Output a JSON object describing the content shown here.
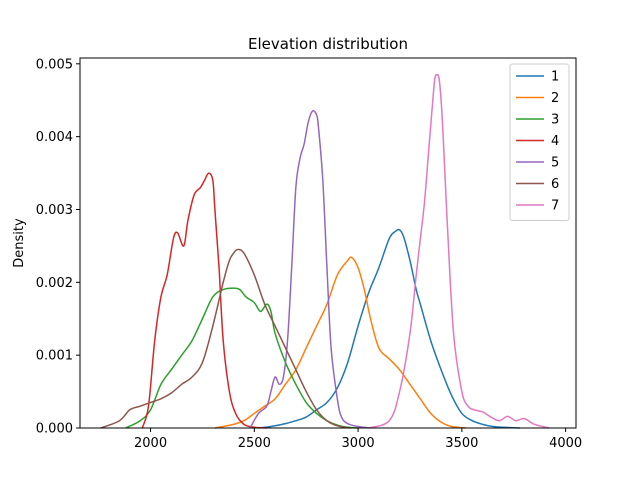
{
  "chart_data": {
    "type": "line",
    "title": "Elevation distribution",
    "xlabel": "",
    "ylabel": "Density",
    "xlim": [
      1660,
      4050
    ],
    "ylim": [
      0,
      0.00508
    ],
    "x_ticks": [
      2000,
      2500,
      3000,
      3500,
      4000
    ],
    "y_ticks": [
      0.0,
      0.001,
      0.002,
      0.003,
      0.004,
      0.005
    ],
    "y_tick_labels": [
      "0.000",
      "0.001",
      "0.002",
      "0.003",
      "0.004",
      "0.005"
    ],
    "legend_position": "top-right",
    "grid": false,
    "series": [
      {
        "name": "1",
        "color": "#1f77b4",
        "x": [
          2520,
          2580,
          2650,
          2700,
          2750,
          2800,
          2850,
          2900,
          2950,
          3000,
          3050,
          3100,
          3150,
          3180,
          3200,
          3220,
          3250,
          3280,
          3300,
          3350,
          3400,
          3450,
          3500,
          3550,
          3600,
          3650,
          3700,
          3780
        ],
        "y": [
          0,
          2e-05,
          6e-05,
          0.0001,
          0.00015,
          0.00025,
          0.00035,
          0.00055,
          0.0009,
          0.0014,
          0.00185,
          0.0022,
          0.0026,
          0.0027,
          0.00272,
          0.00262,
          0.0023,
          0.0019,
          0.0017,
          0.0012,
          0.0008,
          0.00045,
          0.0002,
          0.0001,
          5e-05,
          2e-05,
          1e-05,
          0
        ]
      },
      {
        "name": "2",
        "color": "#ff7f0e",
        "x": [
          2310,
          2400,
          2450,
          2500,
          2550,
          2600,
          2650,
          2700,
          2750,
          2800,
          2850,
          2900,
          2950,
          2970,
          3000,
          3030,
          3060,
          3100,
          3150,
          3200,
          3250,
          3300,
          3350,
          3400,
          3450,
          3520
        ],
        "y": [
          0,
          5e-05,
          0.0001,
          0.0002,
          0.0003,
          0.0004,
          0.0006,
          0.0008,
          0.0011,
          0.0014,
          0.0017,
          0.0021,
          0.0023,
          0.00234,
          0.0022,
          0.0019,
          0.0015,
          0.0011,
          0.00095,
          0.0008,
          0.0006,
          0.0004,
          0.0002,
          8e-05,
          2e-05,
          0
        ]
      },
      {
        "name": "3",
        "color": "#2ca02c",
        "x": [
          1880,
          1950,
          2000,
          2050,
          2100,
          2150,
          2200,
          2250,
          2300,
          2350,
          2400,
          2430,
          2460,
          2500,
          2530,
          2560,
          2580,
          2600,
          2650,
          2700,
          2750,
          2800,
          2850,
          2900,
          2950,
          3000
        ],
        "y": [
          0,
          0.0001,
          0.00025,
          0.0006,
          0.0008,
          0.001,
          0.0012,
          0.0015,
          0.0018,
          0.0019,
          0.00192,
          0.0019,
          0.0018,
          0.00172,
          0.0016,
          0.0017,
          0.0016,
          0.0013,
          0.0009,
          0.0006,
          0.00035,
          0.0002,
          0.0001,
          4e-05,
          1e-05,
          0
        ]
      },
      {
        "name": "4",
        "color": "#d62728",
        "x": [
          1960,
          1990,
          2020,
          2050,
          2080,
          2110,
          2130,
          2160,
          2180,
          2210,
          2240,
          2260,
          2280,
          2300,
          2310,
          2330,
          2350,
          2380,
          2410,
          2450,
          2500,
          2560
        ],
        "y": [
          0,
          0.0003,
          0.0012,
          0.0018,
          0.0021,
          0.0026,
          0.00268,
          0.0025,
          0.00285,
          0.0032,
          0.0033,
          0.0034,
          0.0035,
          0.0034,
          0.003,
          0.0022,
          0.0012,
          0.0005,
          0.0002,
          5e-05,
          1e-05,
          0
        ]
      },
      {
        "name": "5",
        "color": "#9467bd",
        "x": [
          2480,
          2520,
          2560,
          2580,
          2600,
          2620,
          2640,
          2660,
          2680,
          2700,
          2720,
          2740,
          2760,
          2780,
          2800,
          2810,
          2830,
          2850,
          2870,
          2900,
          2920,
          2950,
          3000,
          3060
        ],
        "y": [
          0,
          0.0002,
          0.0003,
          0.0005,
          0.0007,
          0.0006,
          0.0007,
          0.0012,
          0.0022,
          0.0033,
          0.0037,
          0.0039,
          0.0042,
          0.00435,
          0.0043,
          0.0041,
          0.0034,
          0.0022,
          0.0011,
          0.0004,
          0.00015,
          6e-05,
          2e-05,
          0
        ]
      },
      {
        "name": "6",
        "color": "#8c564b",
        "x": [
          1760,
          1850,
          1900,
          1950,
          2000,
          2050,
          2100,
          2150,
          2200,
          2250,
          2300,
          2350,
          2380,
          2400,
          2420,
          2450,
          2500,
          2550,
          2600,
          2650,
          2700,
          2750,
          2800,
          2850,
          2900,
          2960
        ],
        "y": [
          0,
          0.0001,
          0.00025,
          0.0003,
          0.00035,
          0.0004,
          0.00048,
          0.0006,
          0.0007,
          0.0009,
          0.0014,
          0.002,
          0.0023,
          0.0024,
          0.00245,
          0.0024,
          0.0021,
          0.0017,
          0.0014,
          0.0011,
          0.0008,
          0.0005,
          0.00025,
          0.0001,
          3e-05,
          0
        ]
      },
      {
        "name": "7",
        "color": "#e377c2",
        "x": [
          3050,
          3150,
          3200,
          3250,
          3280,
          3300,
          3320,
          3340,
          3360,
          3370,
          3380,
          3390,
          3400,
          3410,
          3430,
          3460,
          3500,
          3530,
          3560,
          3600,
          3640,
          3680,
          3720,
          3760,
          3800,
          3850,
          3920
        ],
        "y": [
          0,
          0.0001,
          0.0005,
          0.0013,
          0.0021,
          0.0026,
          0.0031,
          0.0038,
          0.0045,
          0.0048,
          0.00485,
          0.0048,
          0.0045,
          0.004,
          0.0028,
          0.0013,
          0.0005,
          0.0003,
          0.00025,
          0.00022,
          0.00015,
          0.0001,
          0.00016,
          0.0001,
          0.00013,
          5e-05,
          0
        ]
      }
    ]
  }
}
